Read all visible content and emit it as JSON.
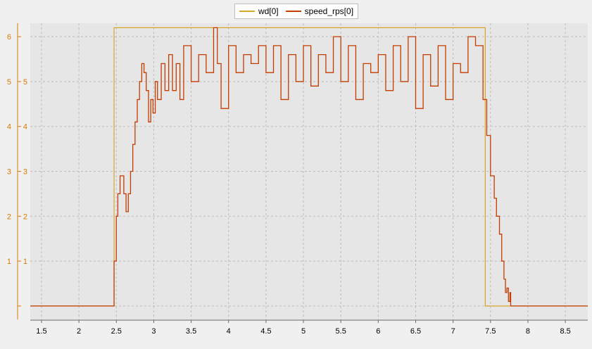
{
  "chart_data": {
    "type": "line",
    "title": "",
    "xlabel": "",
    "ylabel": "",
    "xlim": [
      1.35,
      8.8
    ],
    "ylim": [
      -0.3,
      6.3
    ],
    "legend_position": "top-center",
    "grid": true,
    "x_ticks": [
      1.5,
      2,
      2.5,
      3,
      3.5,
      4,
      4.5,
      5,
      5.5,
      6,
      6.5,
      7,
      7.5,
      8,
      8.5
    ],
    "x_tick_labels": [
      "1.5",
      "2",
      "2.5",
      "3",
      "3.5",
      "4",
      "4.5",
      "5",
      "5.5",
      "6",
      "6.5",
      "7",
      "7.5",
      "8",
      "8.5"
    ],
    "y_ticks": [
      0,
      1,
      2,
      3,
      4,
      5,
      6
    ],
    "y_tick_labels": [
      "",
      "1",
      "2",
      "3",
      "4",
      "5",
      "6"
    ],
    "y_tick_labels_inner": [
      "1",
      "2",
      "3",
      "4",
      "5"
    ],
    "colors": {
      "wd": "#d6a62b",
      "speed": "#c43c00",
      "plot_bg": "#e6e6e6",
      "axis": "#d97a00",
      "grid": "#bdbdbd"
    },
    "series": [
      {
        "name": "wd[0]",
        "x": [
          1.35,
          2.47,
          2.47,
          7.43,
          7.43,
          8.8
        ],
        "y": [
          0,
          0,
          6.2,
          6.2,
          0,
          0
        ]
      },
      {
        "name": "speed_rps[0]",
        "x": [
          1.35,
          2.47,
          2.47,
          2.5,
          2.52,
          2.55,
          2.58,
          2.6,
          2.63,
          2.66,
          2.69,
          2.72,
          2.75,
          2.78,
          2.81,
          2.84,
          2.87,
          2.9,
          2.93,
          2.96,
          2.99,
          3.02,
          3.05,
          3.1,
          3.15,
          3.2,
          3.25,
          3.3,
          3.35,
          3.4,
          3.5,
          3.6,
          3.7,
          3.8,
          3.85,
          3.9,
          4.0,
          4.1,
          4.2,
          4.3,
          4.4,
          4.5,
          4.6,
          4.7,
          4.8,
          4.9,
          5.0,
          5.1,
          5.2,
          5.3,
          5.4,
          5.5,
          5.6,
          5.7,
          5.8,
          5.9,
          6.0,
          6.1,
          6.2,
          6.3,
          6.4,
          6.5,
          6.6,
          6.7,
          6.8,
          6.9,
          7.0,
          7.1,
          7.2,
          7.3,
          7.4,
          7.45,
          7.5,
          7.55,
          7.58,
          7.62,
          7.65,
          7.68,
          7.7,
          7.72,
          7.74,
          7.76,
          7.77,
          8.8
        ],
        "y": [
          0,
          0,
          1.0,
          2.0,
          2.5,
          2.9,
          2.9,
          2.5,
          2.1,
          2.5,
          3.0,
          3.6,
          4.1,
          4.6,
          5.0,
          5.4,
          5.2,
          4.8,
          4.1,
          4.6,
          4.3,
          5.0,
          4.6,
          5.4,
          4.8,
          5.6,
          4.8,
          5.4,
          4.6,
          5.8,
          5.0,
          5.6,
          5.2,
          6.2,
          5.4,
          4.4,
          5.8,
          5.2,
          5.6,
          5.4,
          5.8,
          5.2,
          5.8,
          4.6,
          5.6,
          5.0,
          5.8,
          4.9,
          5.6,
          5.2,
          6.0,
          5.0,
          5.8,
          4.6,
          5.4,
          5.2,
          5.6,
          4.8,
          5.8,
          5.0,
          6.0,
          4.4,
          5.6,
          4.9,
          5.8,
          4.6,
          5.4,
          5.2,
          6.0,
          5.8,
          4.6,
          3.8,
          2.9,
          2.4,
          2.0,
          1.6,
          1.0,
          0.6,
          0.3,
          0.4,
          0.1,
          0.3,
          0,
          0
        ]
      }
    ]
  }
}
